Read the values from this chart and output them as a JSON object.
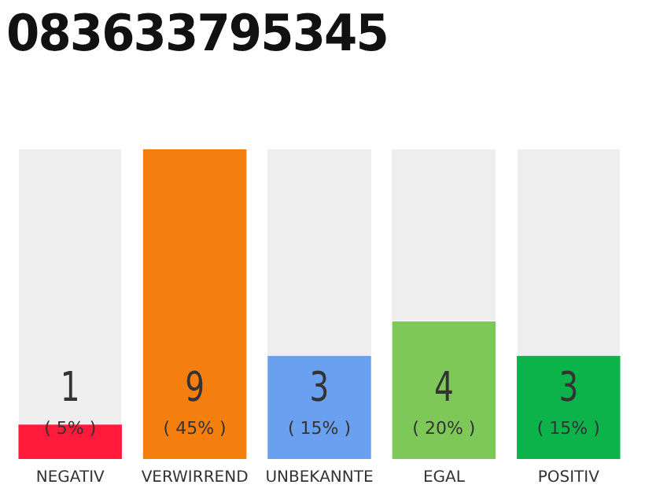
{
  "chart_data": {
    "type": "bar",
    "title": "083633795345",
    "categories": [
      "NEGATIV",
      "VERWIRREND",
      "UNBEKANNTE",
      "EGAL",
      "POSITIV"
    ],
    "values": [
      1,
      9,
      3,
      4,
      3
    ],
    "colors": [
      "#ff1a3c",
      "#f47f0f",
      "#6aa0f0",
      "#7ec85a",
      "#0bb34a"
    ],
    "value_labels": [
      "1\n( 5% )",
      "9\n( 45% )",
      "3\n( 15% )",
      "4\n( 20% )",
      "3\n( 15% )"
    ],
    "ylim": [
      0,
      9
    ],
    "tick_labels": "x",
    "grid": false,
    "legend": false
  }
}
